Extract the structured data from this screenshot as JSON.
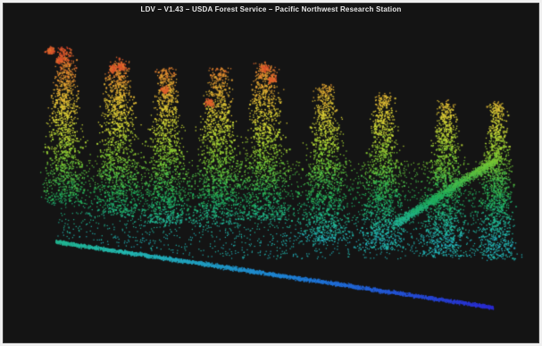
{
  "window": {
    "title": "LDV – V1.43 – USDA Forest Service – Pacific Northwest Research Station"
  },
  "viewer": {
    "background": "#141414",
    "colormap": "height",
    "color_stops": [
      "#2a2ad0",
      "#1e78d8",
      "#23b7b0",
      "#1fae5a",
      "#7cc832",
      "#d7d436",
      "#e0a030",
      "#d9462a"
    ]
  }
}
